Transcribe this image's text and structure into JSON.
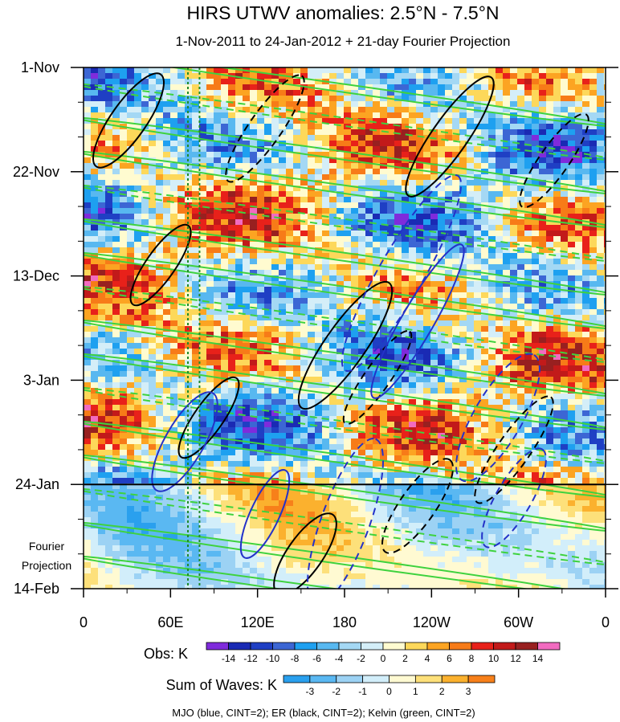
{
  "chart_data": {
    "type": "heatmap",
    "title": "HIRS UTWV anomalies: 2.5°N - 7.5°N",
    "subtitle": "1-Nov-2011 to 24-Jan-2012 + 21-day Fourier Projection",
    "x_ticks": [
      "0",
      "60E",
      "120E",
      "180",
      "120W",
      "60W",
      "0"
    ],
    "x_tick_lon": [
      0,
      60,
      120,
      180,
      240,
      300,
      360
    ],
    "xlim": [
      0,
      360
    ],
    "y_ticks": [
      "1-Nov",
      "22-Nov",
      "13-Dec",
      "3-Jan",
      "24-Jan",
      "14-Feb"
    ],
    "y_tick_day": [
      0,
      21,
      42,
      63,
      84,
      105
    ],
    "ylim": [
      0,
      105
    ],
    "projection_start_day": 84,
    "projection_label_line1": "Fourier",
    "projection_label_line2": "Projection",
    "reference_lines_lon": [
      72,
      80
    ],
    "obs_colorbar": {
      "label": "Obs: K",
      "levels": [
        "-14",
        "-12",
        "-10",
        "-8",
        "-6",
        "-4",
        "-2",
        "0",
        "2",
        "4",
        "6",
        "8",
        "10",
        "12",
        "14"
      ],
      "colors": [
        "#7f2bdc",
        "#1a2ab4",
        "#1f3fc4",
        "#3c66d4",
        "#1ea0f0",
        "#58b8f0",
        "#a4d8f4",
        "#d4eef8",
        "#fffbd0",
        "#fdd85a",
        "#fca422",
        "#f77b18",
        "#e8211a",
        "#c21a1a",
        "#982020",
        "#f26bc0"
      ]
    },
    "waves_colorbar": {
      "label": "Sum of Waves: K",
      "levels": [
        "-3",
        "-2",
        "-1",
        "0",
        "1",
        "2",
        "3"
      ],
      "colors": [
        "#2aa0ee",
        "#5ab8f2",
        "#9cd2f4",
        "#d2eefa",
        "#fffad2",
        "#fde07a",
        "#fbb12e",
        "#f7801a"
      ]
    },
    "footer": "MJO (blue, CINT=2); ER (black, CINT=2); Kelvin (green, CINT=2)",
    "wave_colors": {
      "mjo": "#2432c8",
      "er": "#000000",
      "kelvin": "#3ed23e"
    }
  }
}
